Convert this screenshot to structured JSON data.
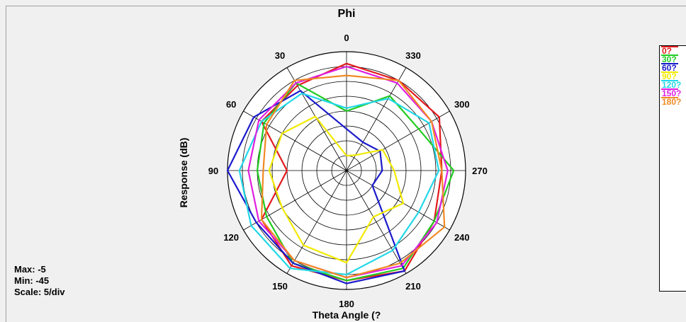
{
  "chart_data": {
    "type": "polar-line",
    "title": "Phi",
    "xlabel": "Theta Angle  (?",
    "ylabel": "Response  (dB)",
    "angle_ticks": [
      "0",
      "30",
      "60",
      "90",
      "120",
      "150",
      "180",
      "210",
      "240",
      "270",
      "300",
      "330"
    ],
    "angle_direction": "counterclockwise",
    "radial_range": [
      -45,
      -5
    ],
    "radial_step": 5,
    "grid": true,
    "stats": {
      "max": "Max: -5",
      "min": "Min: -45",
      "scale": "Scale: 5/div"
    },
    "angles": [
      0,
      30,
      60,
      90,
      120,
      150,
      180,
      210,
      240,
      270,
      300,
      330
    ],
    "series": [
      {
        "name": "0?",
        "color": "#e41a1c",
        "values": [
          -9,
          -12,
          -12,
          -25,
          -12,
          -8,
          -8,
          -6,
          -11,
          -13,
          -9,
          -10
        ]
      },
      {
        "name": "30?",
        "color": "#22cc22",
        "values": [
          -25,
          -11,
          -13,
          -15,
          -14,
          -9,
          -8,
          -7,
          -11,
          -9,
          -17,
          -16
        ]
      },
      {
        "name": "60?",
        "color": "#1a1acc",
        "values": [
          -31,
          -14,
          -9,
          -5,
          -10,
          -9,
          -7,
          -6,
          -35,
          -33,
          -32,
          -34
        ]
      },
      {
        "name": "90?",
        "color": "#f2ea00",
        "values": [
          -40,
          -24,
          -20,
          -19,
          -20,
          -16,
          -14,
          -27,
          -23,
          -29,
          -31,
          -39
        ]
      },
      {
        "name": "120?",
        "color": "#22d8e8",
        "values": [
          -24,
          -15,
          -12,
          -9,
          -8,
          -7,
          -10,
          -14,
          -17,
          -14,
          -13,
          -17
        ]
      },
      {
        "name": "150?",
        "color": "#e020e0",
        "values": [
          -10,
          -11,
          -11,
          -12,
          -11,
          -10,
          -9,
          -8,
          -10,
          -11,
          -12,
          -11
        ]
      },
      {
        "name": "180?",
        "color": "#f08a24",
        "values": [
          -13,
          -10,
          -14,
          -17,
          -12,
          -10,
          -9,
          -9,
          -7,
          -13,
          -12,
          -10
        ]
      }
    ]
  }
}
